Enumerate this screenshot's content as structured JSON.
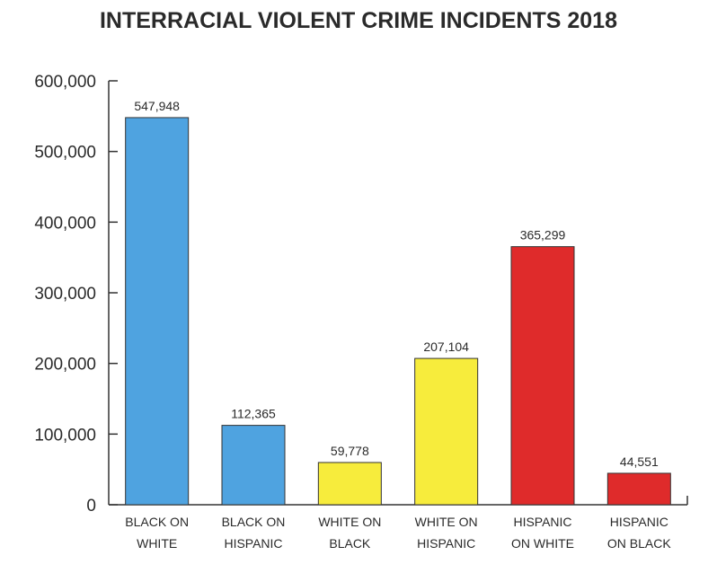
{
  "chart_data": {
    "type": "bar",
    "title": "INTERRACIAL VIOLENT CRIME INCIDENTS 2018",
    "xlabel": "",
    "ylabel": "",
    "ylim": [
      0,
      600000
    ],
    "y_ticks": [
      0,
      100000,
      200000,
      300000,
      400000,
      500000,
      600000
    ],
    "y_tick_labels": [
      "0",
      "100,000",
      "200,000",
      "300,000",
      "400,000",
      "500,000",
      "600,000"
    ],
    "categories": [
      [
        "BLACK ON",
        "WHITE"
      ],
      [
        "BLACK ON",
        "HISPANIC"
      ],
      [
        "WHITE ON",
        "BLACK"
      ],
      [
        "WHITE ON",
        "HISPANIC"
      ],
      [
        "HISPANIC",
        "ON WHITE"
      ],
      [
        "HISPANIC",
        "ON BLACK"
      ]
    ],
    "values": [
      547948,
      112365,
      59778,
      207104,
      365299,
      44551
    ],
    "data_labels": [
      "547,948",
      "112,365",
      "59,778",
      "207,104",
      "365,299",
      "44,551"
    ],
    "bar_colors": [
      "#4fa3e0",
      "#4fa3e0",
      "#f7ec3c",
      "#f7ec3c",
      "#df2b2b",
      "#df2b2b"
    ],
    "grid": false,
    "legend": "none"
  }
}
